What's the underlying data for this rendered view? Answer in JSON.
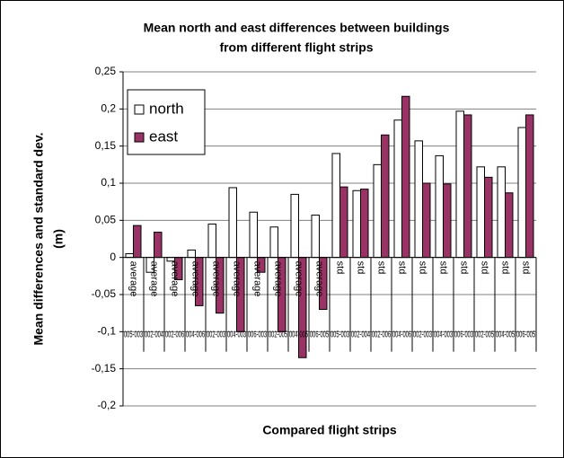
{
  "chart_data": {
    "type": "bar",
    "title": [
      "Mean north and east differences between buildings",
      "from different flight strips"
    ],
    "ylabel": [
      "Mean differences and standard dev.",
      "(m)"
    ],
    "xlabel": "Compared flight strips",
    "category_levels": [
      "average",
      "average",
      "average",
      "average",
      "average",
      "average",
      "average",
      "average",
      "average",
      "average",
      "std",
      "std",
      "std",
      "std",
      "std",
      "std",
      "std",
      "std",
      "std",
      "std"
    ],
    "categories": [
      "005-003",
      "002-004",
      "002-006",
      "004-006",
      "002-003",
      "004-003",
      "006-003",
      "002-005",
      "004-005",
      "006-005",
      "005-003",
      "002-004",
      "002-006",
      "004-006",
      "002-003",
      "004-003",
      "006-003",
      "002-005",
      "004-005",
      "006-005"
    ],
    "series": [
      {
        "name": "north",
        "color": "#ffffff",
        "values": [
          0.005,
          -0.02,
          -0.005,
          0.01,
          0.045,
          0.094,
          0.061,
          0.041,
          0.085,
          0.057,
          0.14,
          0.09,
          0.125,
          0.185,
          0.157,
          0.137,
          0.197,
          0.122,
          0.122,
          0.175
        ]
      },
      {
        "name": "east",
        "color": "#993366",
        "values": [
          0.043,
          0.034,
          -0.03,
          -0.065,
          -0.075,
          -0.1,
          -0.02,
          -0.1,
          -0.135,
          -0.07,
          0.095,
          0.092,
          0.165,
          0.217,
          0.1,
          0.099,
          0.192,
          0.108,
          0.087,
          0.192
        ]
      }
    ],
    "ylim": [
      -0.2,
      0.25
    ],
    "yticks": [
      {
        "value": -0.2,
        "label": "-0,2"
      },
      {
        "value": -0.15,
        "label": "-0,15"
      },
      {
        "value": -0.1,
        "label": "-0,1"
      },
      {
        "value": -0.05,
        "label": "-0,05"
      },
      0,
      {
        "value": 0.05,
        "label": "0,05"
      },
      {
        "value": 0.1,
        "label": "0,1"
      },
      {
        "value": 0.15,
        "label": "0,15"
      },
      {
        "value": 0.2,
        "label": "0,2"
      },
      {
        "value": 0.25,
        "label": "0,25"
      }
    ],
    "grid": true,
    "legend": "upper left"
  }
}
